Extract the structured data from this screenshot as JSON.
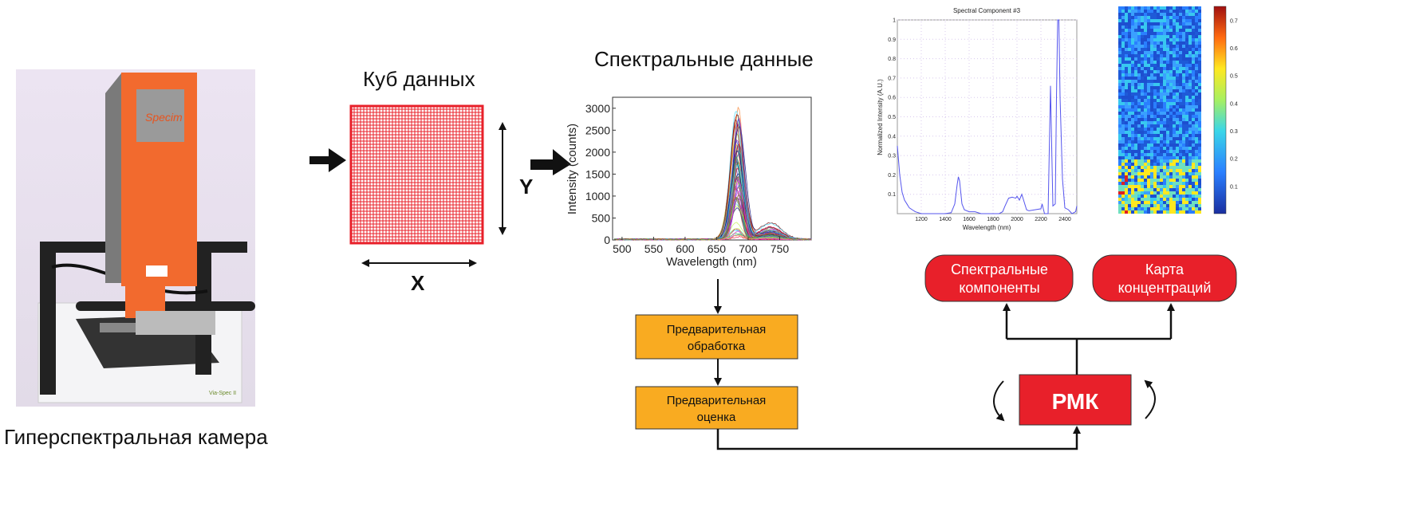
{
  "camera": {
    "caption": "Гиперспектральная камера",
    "logo_text": "Specim",
    "base_label": "Via-Spec II"
  },
  "cube": {
    "title": "Куб данных",
    "x_label": "X",
    "y_label": "Y"
  },
  "spectral_plot": {
    "title": "Спектральные данные",
    "xlabel": "Wavelength (nm)",
    "ylabel": "Intensity (counts)",
    "x_ticks": [
      "500",
      "550",
      "600",
      "650",
      "700",
      "750"
    ],
    "y_ticks": [
      "0",
      "500",
      "1000",
      "1500",
      "2000",
      "2500",
      "3000"
    ],
    "xlim": [
      485,
      800
    ],
    "ylim": [
      0,
      3250
    ],
    "peak_nm": 683,
    "peak_max": 3050
  },
  "flow": {
    "preprocess": "Предварительная обработка",
    "preprocess_l1": "Предварительная",
    "preprocess_l2": "обработка",
    "preeval_l1": "Предварительная",
    "preeval_l2": "оценка",
    "mcr": "РМК",
    "components_l1": "Спектральные",
    "components_l2": "компоненты",
    "map_l1": "Карта",
    "map_l2": "концентраций"
  },
  "colors": {
    "grid": "#e8202a",
    "orange_box": "#f9ab21",
    "red": "#e8202a",
    "line": "#5555ee"
  },
  "chart_data": {
    "type": "line",
    "title": "Spectral Component #3",
    "xlabel": "Wavelength (nm)",
    "ylabel": "Normalized Intensity (A.U.)",
    "xlim": [
      1000,
      2500
    ],
    "ylim": [
      0,
      1
    ],
    "x_ticks": [
      "1200",
      "1400",
      "1600",
      "1800",
      "2000",
      "2200",
      "2400"
    ],
    "y_ticks": [
      "0.1",
      "0.2",
      "0.3",
      "0.4",
      "0.5",
      "0.6",
      "0.7",
      "0.8",
      "0.9",
      "1"
    ],
    "x": [
      1000,
      1020,
      1040,
      1060,
      1080,
      1100,
      1150,
      1200,
      1300,
      1400,
      1450,
      1480,
      1500,
      1510,
      1520,
      1540,
      1560,
      1600,
      1650,
      1700,
      1750,
      1800,
      1850,
      1880,
      1900,
      1930,
      1960,
      1990,
      2000,
      2020,
      2040,
      2060,
      2080,
      2100,
      2150,
      2200,
      2210,
      2230,
      2260,
      2280,
      2300,
      2320,
      2330,
      2340,
      2350,
      2360,
      2380,
      2400,
      2430,
      2460,
      2490,
      2500
    ],
    "y": [
      0.35,
      0.2,
      0.11,
      0.07,
      0.05,
      0.03,
      0.01,
      0.0,
      0.0,
      0.0,
      0.005,
      0.05,
      0.15,
      0.19,
      0.17,
      0.05,
      0.02,
      0.01,
      0.01,
      0.0,
      0.0,
      0.0,
      0.0,
      0.01,
      0.04,
      0.08,
      0.085,
      0.08,
      0.09,
      0.07,
      0.1,
      0.06,
      0.02,
      0.015,
      0.02,
      0.025,
      0.05,
      0.0,
      0.0,
      0.66,
      0.04,
      0.05,
      0.6,
      1.0,
      1.0,
      0.6,
      0.18,
      0.03,
      0.02,
      0.0,
      0.01,
      0.04
    ]
  },
  "colorbar": {
    "ticks": [
      "0.1",
      "0.2",
      "0.3",
      "0.4",
      "0.5",
      "0.6",
      "0.7"
    ],
    "range": [
      0.0,
      0.75
    ]
  }
}
